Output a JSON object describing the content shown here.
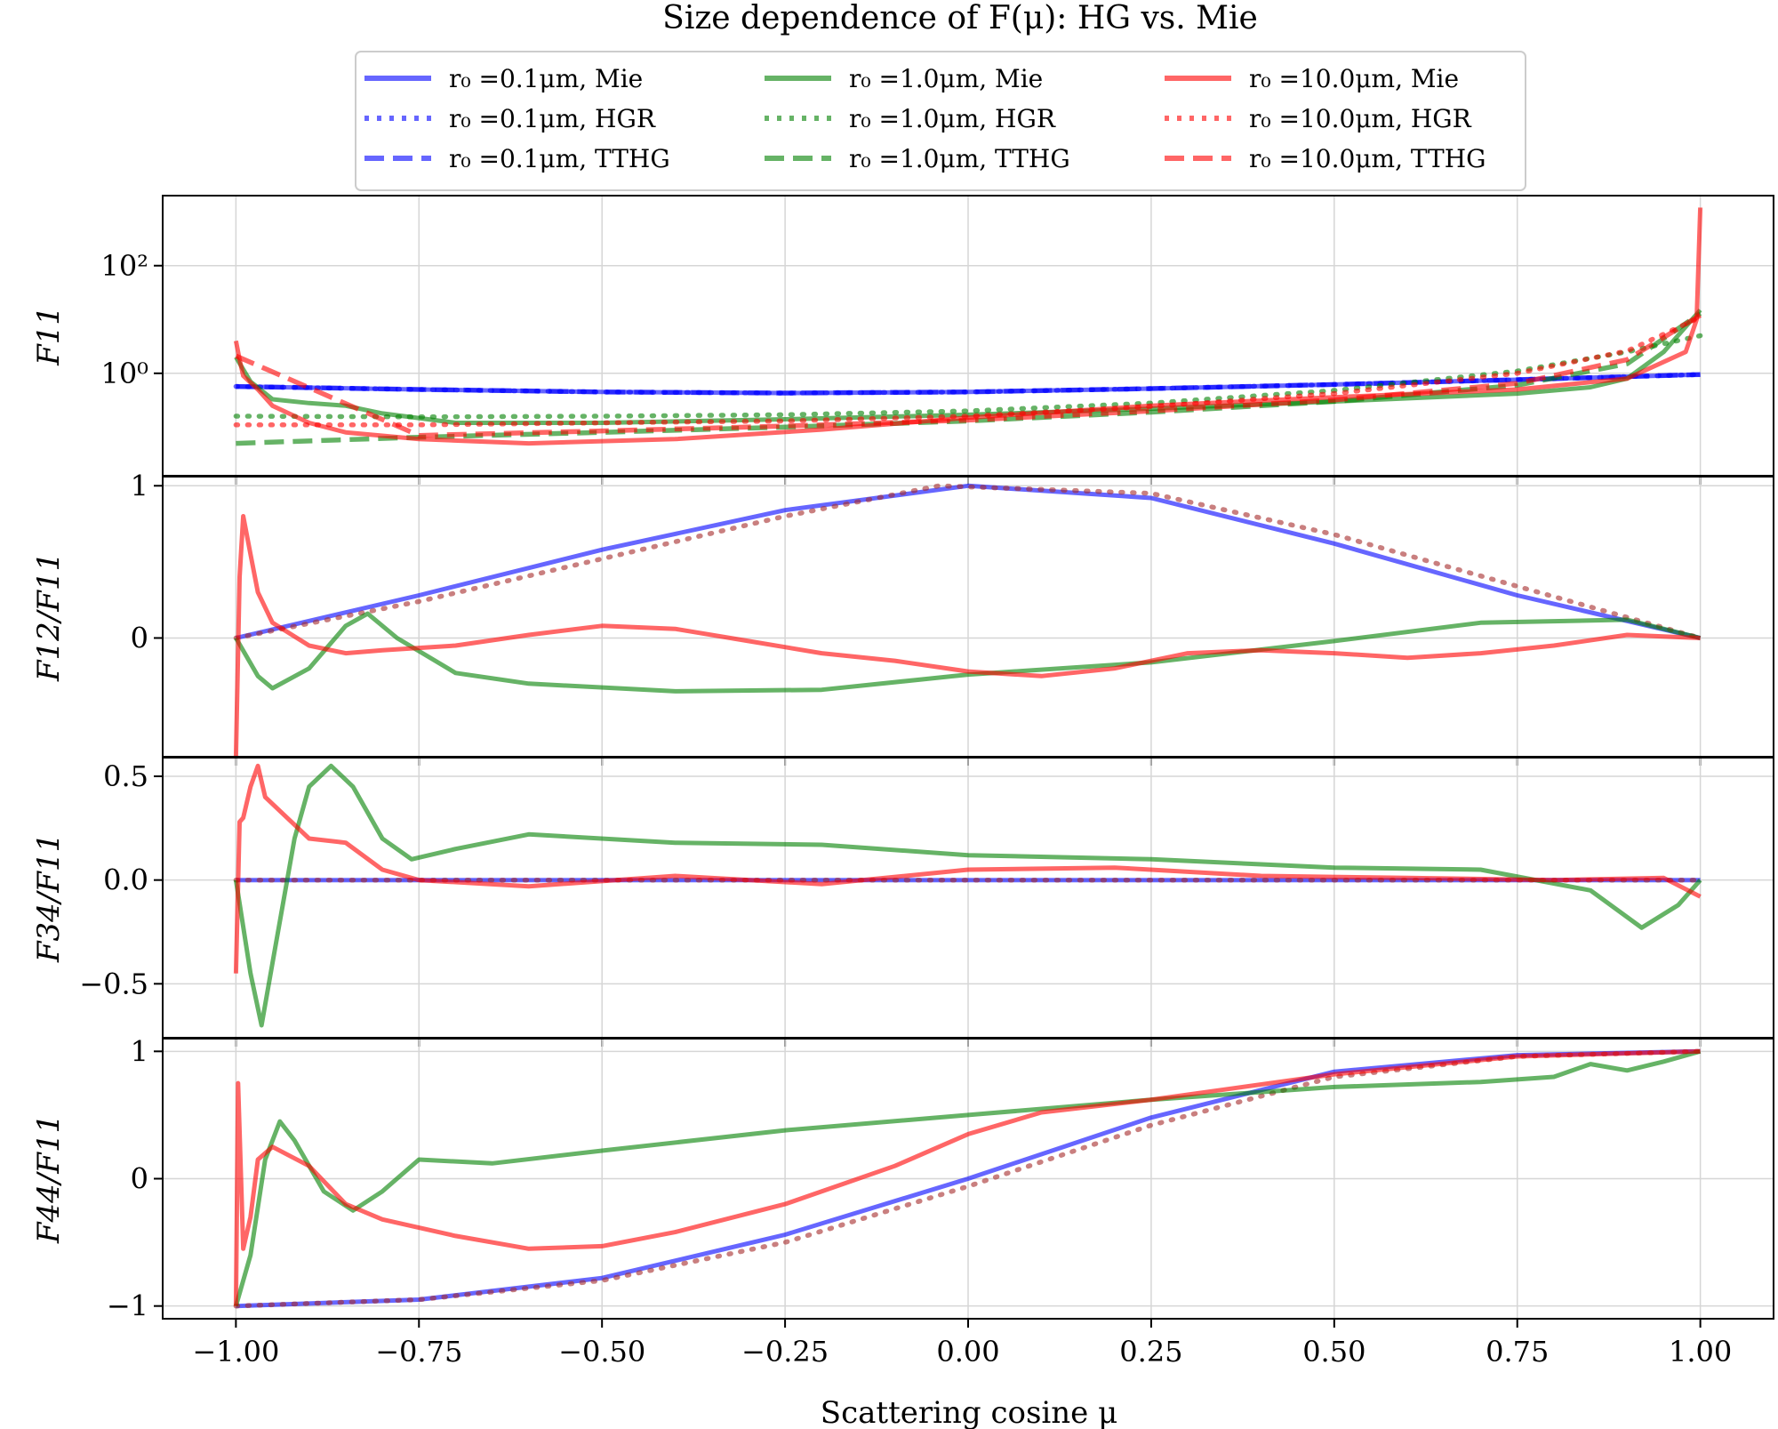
{
  "title": "Size dependence of F(μ): HG vs. Mie",
  "legend": [
    {
      "label": "r₀ =0.1μm, Mie",
      "color": "#0000ff",
      "style": "solid"
    },
    {
      "label": "r₀ =0.1μm, HGR",
      "color": "#0000ff",
      "style": "dotted"
    },
    {
      "label": "r₀ =0.1μm, TTHG",
      "color": "#0000ff",
      "style": "dashed"
    },
    {
      "label": "r₀ =1.0μm, Mie",
      "color": "#008000",
      "style": "solid"
    },
    {
      "label": "r₀ =1.0μm, HGR",
      "color": "#008000",
      "style": "dotted"
    },
    {
      "label": "r₀ =1.0μm, TTHG",
      "color": "#008000",
      "style": "dashed"
    },
    {
      "label": "r₀ =10.0μm, Mie",
      "color": "#ff0000",
      "style": "solid"
    },
    {
      "label": "r₀ =10.0μm, HGR",
      "color": "#ff0000",
      "style": "dotted"
    },
    {
      "label": "r₀ =10.0μm, TTHG",
      "color": "#ff0000",
      "style": "dashed"
    }
  ],
  "xlabel": "Scattering cosine μ",
  "chart_data": [
    {
      "type": "line",
      "ylabel": "F11",
      "yscale": "log",
      "xlim": [
        -1.1,
        1.1
      ],
      "ylim": [
        0.0125,
        2000
      ],
      "xticks": [
        "−1.00",
        "−0.75",
        "−0.50",
        "−0.25",
        "0.00",
        "0.25",
        "0.50",
        "0.75",
        "1.00"
      ],
      "yticks": [
        {
          "v": 100,
          "t": "10²"
        },
        {
          "v": 1,
          "t": "10⁰"
        }
      ],
      "series": [
        {
          "name": "r0=0.1μm, Mie",
          "color": "#0000ff",
          "dash": "solid",
          "x": [
            -1,
            -0.75,
            -0.5,
            -0.25,
            0,
            0.25,
            0.5,
            0.75,
            1
          ],
          "y": [
            0.57,
            0.5,
            0.45,
            0.43,
            0.45,
            0.52,
            0.62,
            0.76,
            0.95
          ]
        },
        {
          "name": "r0=0.1μm, HGR",
          "color": "#0000ff",
          "dash": "dotted",
          "x": [
            -1,
            -0.75,
            -0.5,
            -0.25,
            0,
            0.25,
            0.5,
            0.75,
            1
          ],
          "y": [
            0.57,
            0.5,
            0.45,
            0.43,
            0.45,
            0.52,
            0.62,
            0.76,
            0.95
          ]
        },
        {
          "name": "r0=0.1μm, TTHG",
          "color": "#0000ff",
          "dash": "dashed",
          "x": [
            -1,
            -0.75,
            -0.5,
            -0.25,
            0,
            0.25,
            0.5,
            0.75,
            1
          ],
          "y": [
            0.57,
            0.5,
            0.45,
            0.43,
            0.45,
            0.52,
            0.62,
            0.76,
            0.95
          ]
        },
        {
          "name": "r0=1.0μm, Mie",
          "color": "#008000",
          "dash": "solid",
          "x": [
            -1,
            -0.98,
            -0.95,
            -0.9,
            -0.85,
            -0.8,
            -0.7,
            -0.5,
            -0.25,
            0,
            0.25,
            0.5,
            0.75,
            0.85,
            0.9,
            0.95,
            1
          ],
          "y": [
            2.0,
            0.7,
            0.33,
            0.28,
            0.25,
            0.18,
            0.12,
            0.12,
            0.14,
            0.17,
            0.22,
            0.3,
            0.42,
            0.55,
            0.8,
            2.5,
            15
          ]
        },
        {
          "name": "r0=1.0μm, HGR",
          "color": "#008000",
          "dash": "dotted",
          "x": [
            -1,
            -0.75,
            -0.5,
            -0.25,
            0,
            0.25,
            0.5,
            0.75,
            0.9,
            1
          ],
          "y": [
            0.16,
            0.155,
            0.16,
            0.17,
            0.2,
            0.28,
            0.48,
            1.1,
            2.5,
            5.0
          ]
        },
        {
          "name": "r0=1.0μm, TTHG",
          "color": "#008000",
          "dash": "dashed",
          "x": [
            -1,
            -0.75,
            -0.5,
            -0.25,
            0,
            0.25,
            0.5,
            0.75,
            0.9,
            1
          ],
          "y": [
            0.05,
            0.065,
            0.08,
            0.1,
            0.13,
            0.19,
            0.3,
            0.6,
            1.5,
            13
          ]
        },
        {
          "name": "r0=10.0μm, Mie",
          "color": "#ff0000",
          "dash": "solid",
          "x": [
            -1,
            -0.995,
            -0.99,
            -0.97,
            -0.95,
            -0.9,
            -0.85,
            -0.75,
            -0.6,
            -0.4,
            -0.2,
            0,
            0.25,
            0.5,
            0.75,
            0.9,
            0.98,
            0.995,
            1
          ],
          "y": [
            4.0,
            1.8,
            0.9,
            0.5,
            0.25,
            0.12,
            0.08,
            0.06,
            0.05,
            0.06,
            0.09,
            0.15,
            0.25,
            0.36,
            0.5,
            0.8,
            2.5,
            10,
            1200
          ]
        },
        {
          "name": "r0=10.0μm, HGR",
          "color": "#ff0000",
          "dash": "dotted",
          "x": [
            -1,
            -0.75,
            -0.5,
            -0.25,
            0,
            0.25,
            0.5,
            0.75,
            0.9,
            1
          ],
          "y": [
            0.11,
            0.11,
            0.12,
            0.13,
            0.16,
            0.24,
            0.42,
            1.0,
            2.6,
            11
          ]
        },
        {
          "name": "r0=10.0μm, TTHG",
          "color": "#ff0000",
          "dash": "dashed",
          "x": [
            -1,
            -0.75,
            -0.5,
            -0.25,
            0,
            0.25,
            0.5,
            0.75,
            0.9,
            1
          ],
          "y": [
            2.1,
            0.07,
            0.085,
            0.105,
            0.135,
            0.2,
            0.32,
            0.65,
            1.8,
            12
          ]
        }
      ]
    },
    {
      "type": "line",
      "ylabel": "F12/F11",
      "xlim": [
        -1.1,
        1.1
      ],
      "ylim": [
        -0.78,
        1.06
      ],
      "xticks": [
        "−1.00",
        "−0.75",
        "−0.50",
        "−0.25",
        "0.00",
        "0.25",
        "0.50",
        "0.75",
        "1.00"
      ],
      "yticks": [
        {
          "v": 1,
          "t": "1"
        },
        {
          "v": 0,
          "t": "0"
        }
      ],
      "series": [
        {
          "name": "r0=0.1μm, Mie",
          "color": "#0000ff",
          "dash": "solid",
          "x": [
            -1,
            -0.75,
            -0.5,
            -0.25,
            0,
            0.25,
            0.5,
            0.75,
            1
          ],
          "y": [
            0,
            0.28,
            0.58,
            0.84,
            1.0,
            0.92,
            0.62,
            0.28,
            0
          ]
        },
        {
          "name": "r0=0.1μm, HGR",
          "color": "#a52a2a",
          "dash": "dotted",
          "x": [
            -1,
            -0.75,
            -0.5,
            -0.25,
            -0.04,
            0.25,
            0.5,
            0.75,
            1
          ],
          "y": [
            0,
            0.24,
            0.52,
            0.8,
            1.0,
            0.95,
            0.68,
            0.34,
            0
          ]
        },
        {
          "name": "r0=1.0μm, Mie",
          "color": "#008000",
          "dash": "solid",
          "x": [
            -1,
            -0.97,
            -0.95,
            -0.9,
            -0.85,
            -0.82,
            -0.78,
            -0.7,
            -0.6,
            -0.4,
            -0.2,
            0,
            0.25,
            0.5,
            0.7,
            0.9,
            1
          ],
          "y": [
            0,
            -0.25,
            -0.33,
            -0.2,
            0.08,
            0.16,
            0.0,
            -0.23,
            -0.3,
            -0.35,
            -0.34,
            -0.24,
            -0.16,
            -0.02,
            0.1,
            0.12,
            0
          ]
        },
        {
          "name": "r0=10.0μm, Mie",
          "color": "#ff0000",
          "dash": "solid",
          "x": [
            -1,
            -0.995,
            -0.99,
            -0.98,
            -0.97,
            -0.95,
            -0.9,
            -0.85,
            -0.8,
            -0.7,
            -0.6,
            -0.5,
            -0.4,
            -0.3,
            -0.2,
            -0.1,
            0,
            0.1,
            0.2,
            0.3,
            0.4,
            0.5,
            0.6,
            0.7,
            0.8,
            0.9,
            1
          ],
          "y": [
            -0.78,
            0.4,
            0.8,
            0.55,
            0.3,
            0.1,
            -0.05,
            -0.1,
            -0.08,
            -0.05,
            0.02,
            0.08,
            0.06,
            -0.02,
            -0.1,
            -0.15,
            -0.22,
            -0.25,
            -0.2,
            -0.1,
            -0.08,
            -0.1,
            -0.13,
            -0.1,
            -0.05,
            0.02,
            0
          ]
        }
      ]
    },
    {
      "type": "line",
      "ylabel": "F34/F11",
      "xlim": [
        -1.1,
        1.1
      ],
      "ylim": [
        -0.76,
        0.59
      ],
      "xticks": [
        "−1.00",
        "−0.75",
        "−0.50",
        "−0.25",
        "0.00",
        "0.25",
        "0.50",
        "0.75",
        "1.00"
      ],
      "yticks": [
        {
          "v": 0.5,
          "t": "0.5"
        },
        {
          "v": 0,
          "t": "0.0"
        },
        {
          "v": -0.5,
          "t": "−0.5"
        }
      ],
      "series": [
        {
          "name": "r0=0.1μm, Mie",
          "color": "#0000ff",
          "dash": "solid",
          "x": [
            -1,
            1
          ],
          "y": [
            0,
            0
          ]
        },
        {
          "name": "r0=0.1μm, HGR",
          "color": "#a52a2a",
          "dash": "dotted",
          "x": [
            -1,
            1
          ],
          "y": [
            0,
            0
          ]
        },
        {
          "name": "r0=1.0μm, Mie",
          "color": "#008000",
          "dash": "solid",
          "x": [
            -1,
            -0.98,
            -0.965,
            -0.95,
            -0.92,
            -0.9,
            -0.87,
            -0.84,
            -0.8,
            -0.76,
            -0.7,
            -0.6,
            -0.4,
            -0.2,
            0,
            0.25,
            0.5,
            0.7,
            0.85,
            0.92,
            0.97,
            1
          ],
          "y": [
            0,
            -0.45,
            -0.7,
            -0.4,
            0.2,
            0.45,
            0.55,
            0.45,
            0.2,
            0.1,
            0.15,
            0.22,
            0.18,
            0.17,
            0.12,
            0.1,
            0.06,
            0.05,
            -0.05,
            -0.23,
            -0.12,
            0
          ]
        },
        {
          "name": "r0=10.0μm, Mie",
          "color": "#ff0000",
          "dash": "solid",
          "x": [
            -1,
            -0.995,
            -0.99,
            -0.98,
            -0.97,
            -0.96,
            -0.93,
            -0.9,
            -0.85,
            -0.8,
            -0.75,
            -0.6,
            -0.4,
            -0.2,
            0,
            0.2,
            0.4,
            0.6,
            0.8,
            0.95,
            1
          ],
          "y": [
            -0.45,
            0.28,
            0.3,
            0.45,
            0.55,
            0.4,
            0.3,
            0.2,
            0.18,
            0.05,
            0.0,
            -0.03,
            0.02,
            -0.02,
            0.05,
            0.06,
            0.02,
            0.01,
            0.0,
            0.01,
            -0.08
          ]
        }
      ]
    },
    {
      "type": "line",
      "ylabel": "F44/F11",
      "xlim": [
        -1.1,
        1.1
      ],
      "ylim": [
        -1.1,
        1.1
      ],
      "xticks": [
        "−1.00",
        "−0.75",
        "−0.50",
        "−0.25",
        "0.00",
        "0.25",
        "0.50",
        "0.75",
        "1.00"
      ],
      "yticks": [
        {
          "v": 1,
          "t": "1"
        },
        {
          "v": 0,
          "t": "0"
        },
        {
          "v": -1,
          "t": "−1"
        }
      ],
      "series": [
        {
          "name": "r0=0.1μm, Mie",
          "color": "#0000ff",
          "dash": "solid",
          "x": [
            -1,
            -0.75,
            -0.5,
            -0.25,
            0,
            0.25,
            0.5,
            0.75,
            1
          ],
          "y": [
            -1,
            -0.95,
            -0.78,
            -0.44,
            0.0,
            0.48,
            0.84,
            0.97,
            1
          ]
        },
        {
          "name": "r0=0.1μm, HGR",
          "color": "#a52a2a",
          "dash": "dotted",
          "x": [
            -1,
            -0.75,
            -0.5,
            -0.25,
            0,
            0.25,
            0.5,
            0.75,
            1
          ],
          "y": [
            -1,
            -0.95,
            -0.8,
            -0.5,
            -0.06,
            0.42,
            0.8,
            0.96,
            1
          ]
        },
        {
          "name": "r0=1.0μm, Mie",
          "color": "#008000",
          "dash": "solid",
          "x": [
            -1,
            -0.98,
            -0.96,
            -0.94,
            -0.92,
            -0.88,
            -0.84,
            -0.8,
            -0.75,
            -0.65,
            -0.5,
            -0.25,
            0,
            0.25,
            0.5,
            0.7,
            0.8,
            0.85,
            0.9,
            0.95,
            1
          ],
          "y": [
            -1,
            -0.6,
            0.15,
            0.45,
            0.3,
            -0.1,
            -0.25,
            -0.1,
            0.15,
            0.12,
            0.22,
            0.38,
            0.5,
            0.62,
            0.72,
            0.76,
            0.8,
            0.9,
            0.85,
            0.92,
            1
          ]
        },
        {
          "name": "r0=10.0μm, Mie",
          "color": "#ff0000",
          "dash": "solid",
          "x": [
            -1,
            -0.997,
            -0.99,
            -0.98,
            -0.97,
            -0.95,
            -0.9,
            -0.85,
            -0.8,
            -0.7,
            -0.6,
            -0.5,
            -0.4,
            -0.25,
            -0.1,
            0,
            0.1,
            0.25,
            0.5,
            0.75,
            1
          ],
          "y": [
            -1,
            0.75,
            -0.55,
            -0.3,
            0.15,
            0.25,
            0.1,
            -0.2,
            -0.32,
            -0.45,
            -0.55,
            -0.53,
            -0.42,
            -0.2,
            0.1,
            0.35,
            0.52,
            0.62,
            0.82,
            0.96,
            1
          ]
        }
      ]
    }
  ]
}
